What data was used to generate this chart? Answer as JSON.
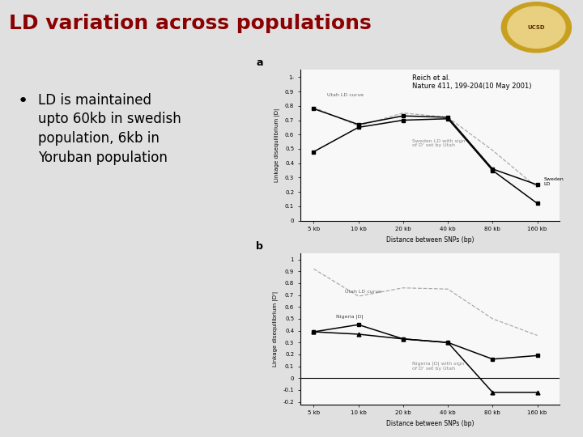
{
  "title": "LD variation across populations",
  "bullet_text": "LD is maintained\nupto 60kb in swedish\npopulation, 6kb in\nYoruban population",
  "citation": "Reich et al.\nNature 411, 199-204(10 May 2001)",
  "bg_color": "#e0e0e0",
  "title_color": "#8b0000",
  "x_ticks": [
    "5 kb",
    "10 kb",
    "20 kb",
    "40 kb",
    "80 kb",
    "160 kb"
  ],
  "x_vals": [
    0,
    1,
    2,
    3,
    4,
    5
  ],
  "panel_a": {
    "utah_ld": [
      0.79,
      0.66,
      0.75,
      0.72,
      0.49,
      0.23
    ],
    "sweden_ld": [
      0.78,
      0.67,
      0.73,
      0.72,
      0.36,
      0.25
    ],
    "sweden_signed": [
      0.48,
      0.65,
      0.7,
      0.71,
      0.35,
      0.12
    ],
    "ylabel": "Linkage disequilibrium |D|",
    "xlabel": "Distance between SNPs (bp)",
    "yticks": [
      0,
      0.1,
      0.2,
      0.3,
      0.4,
      0.5,
      0.6,
      0.7,
      0.8,
      0.9
    ],
    "ytick_labels": [
      "0",
      "0.1-",
      "0.2-",
      "0.3-",
      "0.4-",
      "0.5-",
      "0.6-",
      "0.7-",
      "0.8-",
      "0.9-"
    ]
  },
  "panel_b": {
    "utah_ld": [
      0.92,
      0.69,
      0.76,
      0.75,
      0.5,
      0.36
    ],
    "nigeria_ld": [
      0.39,
      0.45,
      0.33,
      0.3,
      0.16,
      0.19
    ],
    "nigeria_signed": [
      0.39,
      0.37,
      0.33,
      0.3,
      -0.12,
      -0.12
    ],
    "ylabel": "Linkage disequilibrium |D'|",
    "xlabel": "Distance between SNPs (bp)",
    "yticks": [
      -0.2,
      -0.1,
      0,
      0.1,
      0.2,
      0.3,
      0.4,
      0.5,
      0.6,
      0.7,
      0.8,
      0.9,
      1.0
    ],
    "ytick_labels": [
      "-0.2",
      "-0.1",
      "0",
      "0.1",
      "0.2",
      "0.3",
      "0.4",
      "0.5",
      "0.6",
      "0.7",
      "0.8",
      "0.9",
      "1"
    ]
  }
}
